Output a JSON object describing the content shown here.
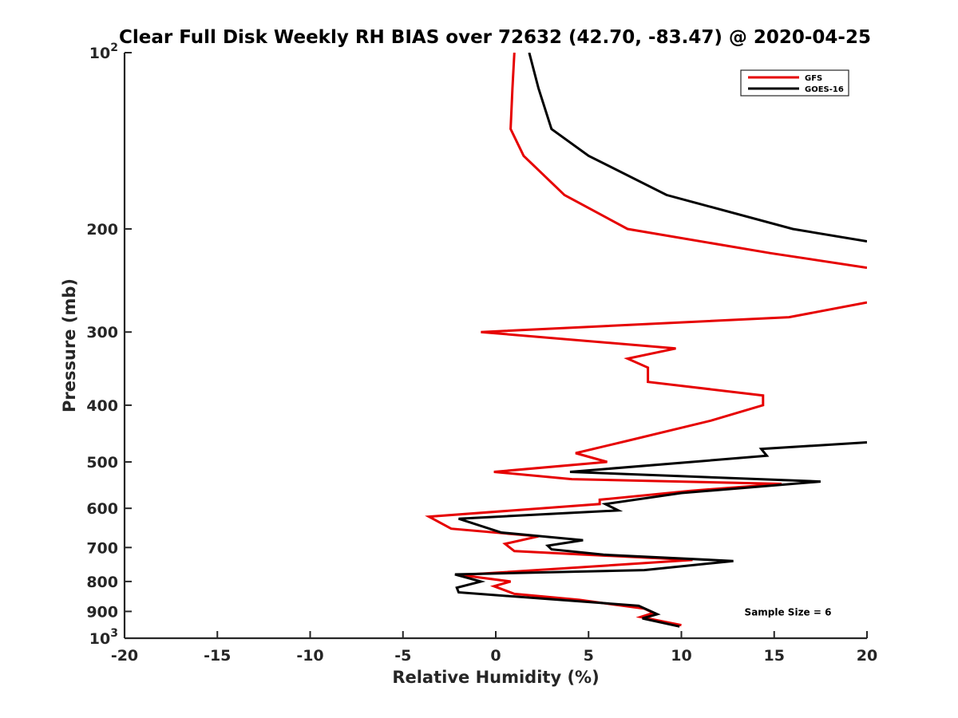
{
  "chart_data": {
    "type": "line",
    "title": "Clear Full Disk Weekly RH BIAS over 72632 (42.70, -83.47) @ 2020-04-25",
    "xlabel": "Relative Humidity (%)",
    "ylabel": "Pressure (mb)",
    "xlim": [
      -20,
      20
    ],
    "ylim": [
      1000,
      100
    ],
    "yscale": "log",
    "grid": false,
    "legend_position": "top-right",
    "x_ticks": [
      {
        "value": -20,
        "label": "-20"
      },
      {
        "value": -15,
        "label": "-15"
      },
      {
        "value": -10,
        "label": "-10"
      },
      {
        "value": -5,
        "label": "-5"
      },
      {
        "value": 0,
        "label": "0"
      },
      {
        "value": 5,
        "label": "5"
      },
      {
        "value": 10,
        "label": "10"
      },
      {
        "value": 15,
        "label": "15"
      },
      {
        "value": 20,
        "label": "20"
      }
    ],
    "y_ticks": [
      {
        "value": 100,
        "label": "10",
        "sup": "2"
      },
      {
        "value": 200,
        "label": "200",
        "sup": ""
      },
      {
        "value": 300,
        "label": "300",
        "sup": ""
      },
      {
        "value": 400,
        "label": "400",
        "sup": ""
      },
      {
        "value": 500,
        "label": "500",
        "sup": ""
      },
      {
        "value": 600,
        "label": "600",
        "sup": ""
      },
      {
        "value": 700,
        "label": "700",
        "sup": ""
      },
      {
        "value": 800,
        "label": "800",
        "sup": ""
      },
      {
        "value": 900,
        "label": "900",
        "sup": ""
      },
      {
        "value": 1000,
        "label": "10",
        "sup": "3"
      }
    ],
    "annotations": [
      {
        "text": "Sample Size = 6",
        "x": 13.4,
        "y": 900
      }
    ],
    "series": [
      {
        "name": "GFS",
        "color": "#e60000",
        "points": [
          [
            1.0,
            100
          ],
          [
            0.9,
            115
          ],
          [
            0.8,
            135
          ],
          [
            1.5,
            150
          ],
          [
            3.7,
            175
          ],
          [
            7.1,
            200
          ],
          [
            14.8,
            220
          ],
          [
            20.0,
            233
          ],
          [
            null,
            null
          ],
          [
            20.0,
            267
          ],
          [
            15.8,
            283
          ],
          [
            -0.8,
            300
          ],
          [
            9.7,
            320
          ],
          [
            7.1,
            333
          ],
          [
            8.2,
            345
          ],
          [
            8.2,
            365
          ],
          [
            14.4,
            385
          ],
          [
            14.4,
            400
          ],
          [
            11.6,
            425
          ],
          [
            7.1,
            460
          ],
          [
            4.3,
            483
          ],
          [
            6.0,
            500
          ],
          [
            -0.1,
            520
          ],
          [
            4.1,
            535
          ],
          [
            15.4,
            545
          ],
          [
            10.5,
            560
          ],
          [
            5.6,
            580
          ],
          [
            5.6,
            590
          ],
          [
            -3.6,
            620
          ],
          [
            -2.4,
            650
          ],
          [
            2.3,
            670
          ],
          [
            0.5,
            690
          ],
          [
            1.0,
            710
          ],
          [
            10.6,
            735
          ],
          [
            -1.9,
            780
          ],
          [
            0.8,
            800
          ],
          [
            -0.1,
            815
          ],
          [
            1.0,
            840
          ],
          [
            4.5,
            860
          ],
          [
            8.0,
            890
          ],
          [
            8.5,
            905
          ],
          [
            7.8,
            920
          ],
          [
            10.0,
            950
          ]
        ]
      },
      {
        "name": "GOES-16",
        "color": "#000000",
        "points": [
          [
            1.8,
            100
          ],
          [
            2.3,
            115
          ],
          [
            3.0,
            135
          ],
          [
            5.0,
            150
          ],
          [
            9.2,
            175
          ],
          [
            16.0,
            200
          ],
          [
            20.0,
            210
          ],
          [
            null,
            null
          ],
          [
            20.0,
            463
          ],
          [
            14.3,
            475
          ],
          [
            14.6,
            488
          ],
          [
            4.0,
            520
          ],
          [
            17.5,
            540
          ],
          [
            10.0,
            565
          ],
          [
            5.9,
            590
          ],
          [
            6.6,
            605
          ],
          [
            -2.0,
            625
          ],
          [
            0.3,
            660
          ],
          [
            4.7,
            680
          ],
          [
            2.8,
            695
          ],
          [
            3.0,
            705
          ],
          [
            5.8,
            720
          ],
          [
            12.8,
            738
          ],
          [
            8.0,
            765
          ],
          [
            -2.2,
            778
          ],
          [
            -0.8,
            800
          ],
          [
            -2.1,
            820
          ],
          [
            -2.0,
            835
          ],
          [
            7.7,
            880
          ],
          [
            8.7,
            910
          ],
          [
            7.9,
            925
          ],
          [
            9.9,
            955
          ]
        ]
      }
    ]
  }
}
